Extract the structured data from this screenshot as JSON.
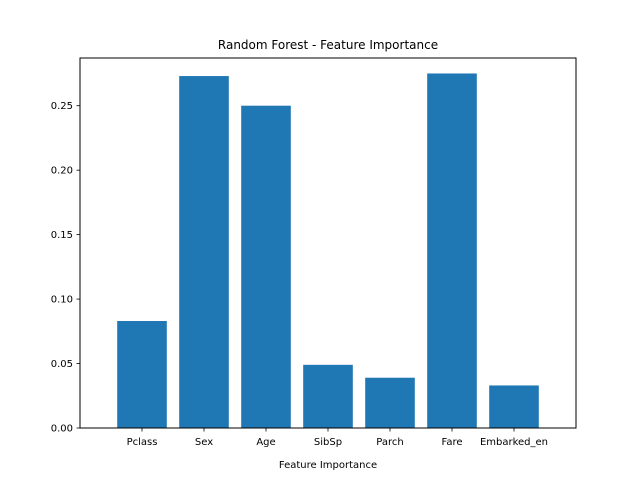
{
  "chart_data": {
    "type": "bar",
    "title": "Random Forest - Feature Importance",
    "xlabel": "Feature Importance",
    "ylabel": "",
    "categories": [
      "Pclass",
      "Sex",
      "Age",
      "SibSp",
      "Parch",
      "Fare",
      "Embarked_en"
    ],
    "values": [
      0.083,
      0.273,
      0.25,
      0.049,
      0.039,
      0.275,
      0.033
    ],
    "ylim": [
      0,
      0.287
    ],
    "yticks": [
      0.0,
      0.05,
      0.1,
      0.15,
      0.2,
      0.25
    ],
    "ytick_labels": [
      "0.00",
      "0.05",
      "0.10",
      "0.15",
      "0.20",
      "0.25"
    ],
    "bar_color": "#1f77b4",
    "grid": false,
    "legend": "none"
  }
}
